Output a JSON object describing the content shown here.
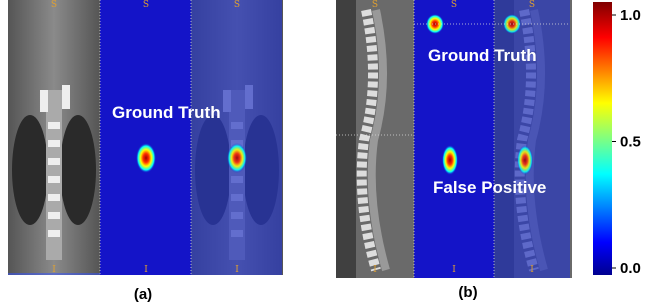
{
  "panels": [
    {
      "label": "(a)",
      "views": [
        {
          "top": "S",
          "bottom": "I"
        },
        {
          "top": "S",
          "bottom": "I"
        },
        {
          "top": "S",
          "bottom": "I"
        }
      ],
      "annotations": [
        "Ground Truth"
      ]
    },
    {
      "label": "(b)",
      "views": [
        {
          "top": "S",
          "bottom": "I"
        },
        {
          "top": "S",
          "bottom": "I"
        },
        {
          "top": "S",
          "bottom": "I"
        }
      ],
      "annotations": [
        "Ground Truth",
        "False Positive"
      ]
    }
  ],
  "colorbar": {
    "lim": [
      0,
      1
    ],
    "ticks": [
      {
        "value": 1,
        "label": "1.0"
      },
      {
        "value": 0.5,
        "label": "0.5"
      },
      {
        "value": 0,
        "label": "0.0"
      }
    ]
  }
}
